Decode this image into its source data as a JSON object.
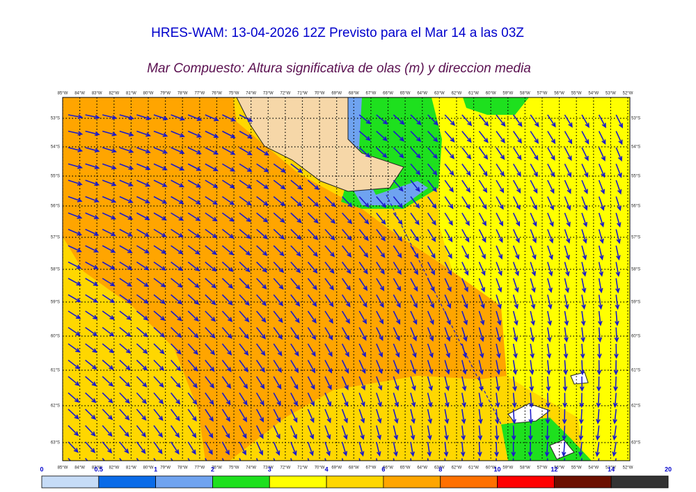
{
  "header": {
    "title": "HRES-WAM: 13-04-2026 12Z Previsto para el Mar 14 a las 03Z",
    "subtitle": "Mar Compuesto: Altura significativa de olas (m) y direccion media"
  },
  "map": {
    "longitudes": [
      "85°W",
      "84°W",
      "83°W",
      "82°W",
      "81°W",
      "80°W",
      "79°W",
      "78°W",
      "77°W",
      "76°W",
      "75°W",
      "74°W",
      "73°W",
      "72°W",
      "71°W",
      "70°W",
      "69°W",
      "68°W",
      "67°W",
      "66°W",
      "65°W",
      "64°W",
      "63°W",
      "62°W",
      "61°W",
      "60°W",
      "59°W",
      "58°W",
      "57°W",
      "56°W",
      "55°W",
      "54°W",
      "53°W",
      "52°W"
    ],
    "latitudes": [
      "53°S",
      "54°S",
      "55°S",
      "56°S",
      "57°S",
      "58°S",
      "59°S",
      "60°S",
      "61°S",
      "62°S",
      "63°S"
    ]
  },
  "colorbar": {
    "ticks": [
      0,
      0.5,
      1,
      2,
      3,
      4,
      6,
      8,
      10,
      12,
      14,
      20
    ],
    "colors": [
      "#c6dcf7",
      "#0a6be8",
      "#6fa3f0",
      "#1ee01e",
      "#ffff00",
      "#ffd700",
      "#ffa500",
      "#ff7000",
      "#ff0000",
      "#6b0f00",
      "#333333"
    ]
  }
}
